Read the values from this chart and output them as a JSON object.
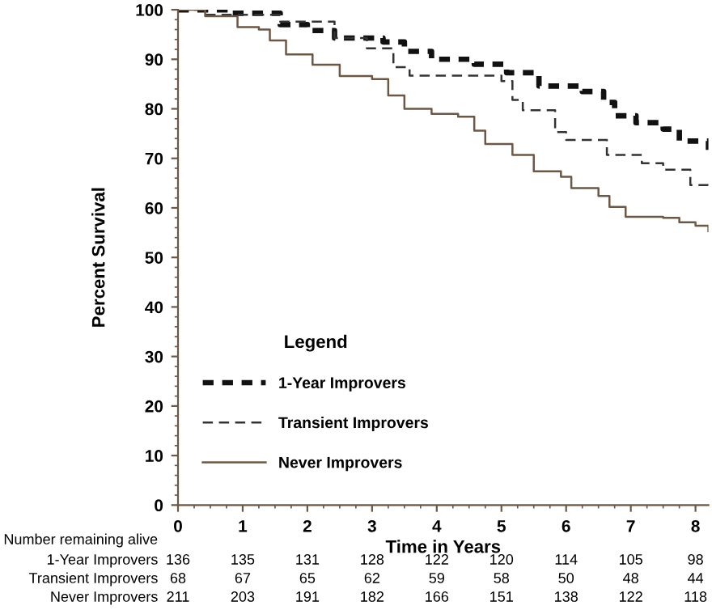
{
  "chart_data": {
    "type": "step",
    "xlabel": "Time in Years",
    "ylabel": "Percent Survival",
    "legend_title": "Legend",
    "legend": "bottom left",
    "xlim": [
      0,
      8.2
    ],
    "ylim": [
      0,
      100
    ],
    "xticks": [
      0,
      1,
      2,
      3,
      4,
      5,
      6,
      7,
      8
    ],
    "yticks": [
      0,
      10,
      20,
      30,
      40,
      50,
      60,
      70,
      80,
      90,
      100
    ],
    "grid": false,
    "series": [
      {
        "name": "1-Year Improvers",
        "color": "#111111",
        "line_style": "dashed",
        "x": [
          0,
          0.83,
          1.58,
          2,
          2.42,
          3.17,
          3.5,
          3.92,
          4.58,
          5.08,
          5.58,
          6.25,
          6.58,
          6.75,
          7.08,
          7.5,
          7.75,
          8.2
        ],
        "values": [
          100,
          99.3,
          97,
          95.8,
          94.3,
          93.5,
          91.6,
          90,
          89,
          87.3,
          84.6,
          83.5,
          81.3,
          78.6,
          77.2,
          75.9,
          73.5,
          71.7
        ]
      },
      {
        "name": "Transient Improvers",
        "color": "#333333",
        "line_style": "dashed",
        "x": [
          0,
          0.42,
          1.58,
          2.42,
          2.92,
          3.33,
          3.58,
          5,
          5.17,
          5.33,
          5.83,
          6,
          6.63,
          7.17,
          7.5,
          7.92,
          8.2
        ],
        "values": [
          100,
          99,
          97.6,
          94.3,
          92.2,
          88.4,
          86.7,
          85.6,
          81.8,
          79.7,
          75.3,
          73.7,
          70.7,
          69,
          67.7,
          64.6,
          63.5
        ]
      },
      {
        "name": "Never Improvers",
        "color": "#6b5846",
        "line_style": "solid",
        "x": [
          0,
          0.42,
          0.92,
          1.25,
          1.42,
          1.67,
          2.08,
          2.5,
          3,
          3.25,
          3.5,
          3.92,
          4.33,
          4.58,
          4.75,
          5.17,
          5.5,
          5.92,
          6.08,
          6.5,
          6.67,
          6.92,
          7.5,
          7.75,
          8,
          8.2
        ],
        "values": [
          100,
          98.7,
          96.5,
          96,
          93.8,
          91,
          88.9,
          86.6,
          86,
          82.7,
          80,
          79,
          78.4,
          75.6,
          72.9,
          70.7,
          67.4,
          66.3,
          64,
          62.4,
          60.2,
          58.2,
          58,
          57.1,
          56.4,
          55.3
        ]
      }
    ],
    "annotations": [
      "Number remaining alive",
      "1-Year Improvers",
      "136",
      "135",
      "131",
      "128",
      "122",
      "120",
      "114",
      "105",
      "98",
      "Transient Improvers",
      "68",
      "67",
      "65",
      "62",
      "59",
      "58",
      "50",
      "48",
      "44",
      "Never Improvers",
      "211",
      "203",
      "191",
      "182",
      "166",
      "151",
      "138",
      "122",
      "118"
    ]
  }
}
